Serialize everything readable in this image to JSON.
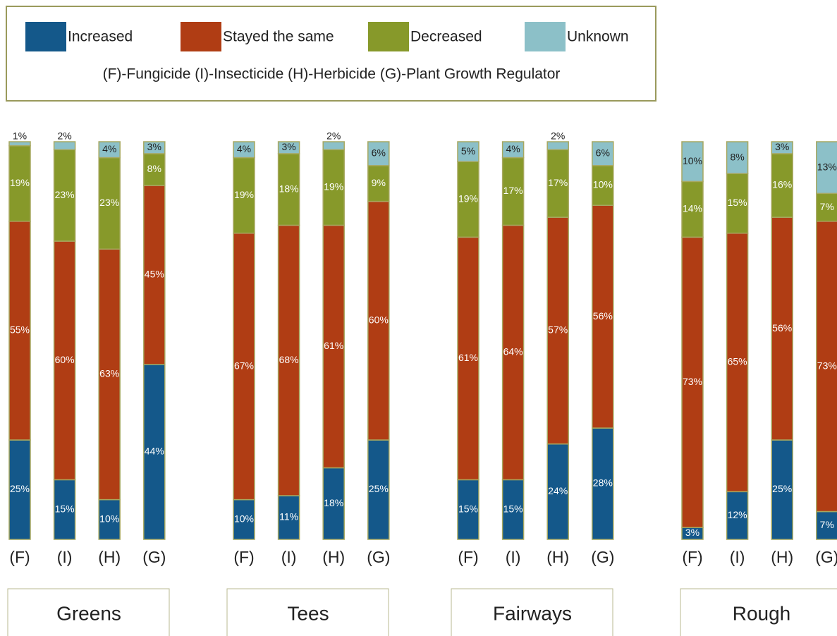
{
  "chart_data": {
    "type": "stacked_bar",
    "note": "(F)-Fungicide  (I)-Insecticide  (H)-Herbicide  (G)-Plant Growth Regulator",
    "groups": [
      "Greens",
      "Tees",
      "Fairways",
      "Rough"
    ],
    "categories": [
      "(F)",
      "(I)",
      "(H)",
      "(G)",
      "(F)",
      "(I)",
      "(H)",
      "(G)",
      "(F)",
      "(I)",
      "(H)",
      "(G)",
      "(F)",
      "(I)",
      "(H)",
      "(G)"
    ],
    "ylim": [
      0,
      100
    ],
    "series": [
      {
        "name": "Increased",
        "color": "#14588a",
        "values": [
          25,
          15,
          10,
          44,
          10,
          11,
          18,
          25,
          15,
          15,
          24,
          28,
          3,
          12,
          25,
          7
        ],
        "value_labels": [
          "25%",
          "15%",
          "10%",
          "44%",
          "10%",
          "11%",
          "18%",
          "25%",
          "15%",
          "15%",
          "24%",
          "28%",
          "3%",
          "12%",
          "25%",
          "7%"
        ]
      },
      {
        "name": "Stayed the same",
        "color": "#b03d14",
        "values": [
          55,
          60,
          63,
          45,
          67,
          68,
          61,
          60,
          61,
          64,
          57,
          56,
          73,
          65,
          56,
          73
        ],
        "value_labels": [
          "55%",
          "60%",
          "63%",
          "45%",
          "67%",
          "68%",
          "61%",
          "60%",
          "61%",
          "64%",
          "57%",
          "56%",
          "73%",
          "65%",
          "56%",
          "73%"
        ]
      },
      {
        "name": "Decreased",
        "color": "#87992a",
        "values": [
          19,
          23,
          23,
          8,
          19,
          18,
          19,
          9,
          19,
          17,
          17,
          10,
          14,
          15,
          16,
          7
        ],
        "value_labels": [
          "19%",
          "23%",
          "23%",
          "8%",
          "19%",
          "18%",
          "19%",
          "9%",
          "19%",
          "17%",
          "17%",
          "10%",
          "14%",
          "15%",
          "16%",
          "7%"
        ]
      },
      {
        "name": "Unknown",
        "color": "#8cc0c8",
        "values": [
          1,
          2,
          4,
          3,
          4,
          3,
          2,
          6,
          5,
          4,
          2,
          6,
          10,
          8,
          3,
          13
        ],
        "value_labels": [
          "1%",
          "2%",
          "4%",
          "3%",
          "4%",
          "3%",
          "2%",
          "6%",
          "5%",
          "4%",
          "2%",
          "6%",
          "10%",
          "8%",
          "3%",
          "13%"
        ]
      }
    ]
  }
}
